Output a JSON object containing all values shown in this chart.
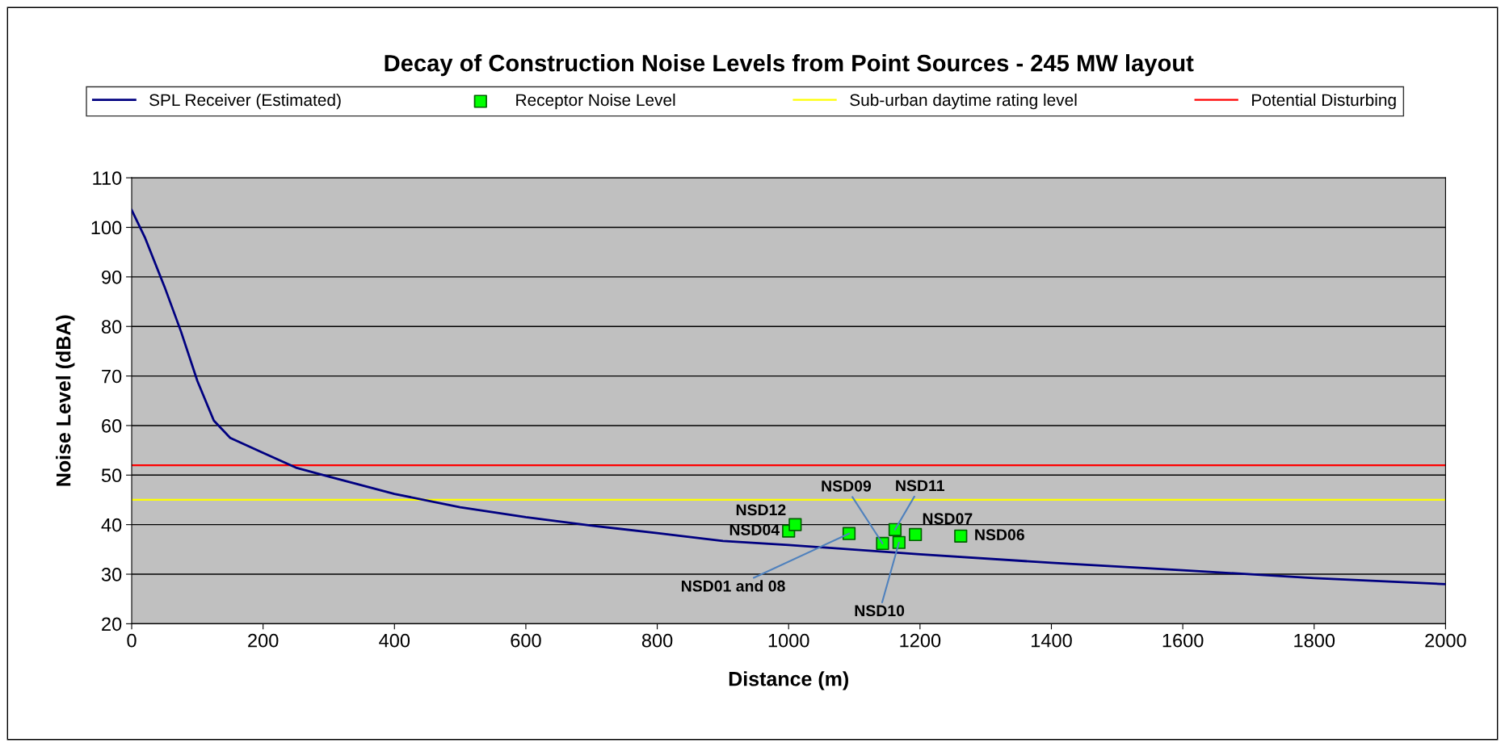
{
  "chart_data": {
    "type": "line",
    "title": "Decay of Construction Noise Levels from Point Sources - 245 MW layout",
    "xlabel": "Distance (m)",
    "ylabel": "Noise Level (dBA)",
    "xlim": [
      0,
      2000
    ],
    "xticks": [
      0,
      200,
      400,
      600,
      800,
      1000,
      1200,
      1400,
      1600,
      1800,
      2000
    ],
    "ylim": [
      20,
      110
    ],
    "yticks": [
      20,
      30,
      40,
      50,
      60,
      70,
      80,
      90,
      100,
      110
    ],
    "grid": "y",
    "legend": "top",
    "series": [
      {
        "name": "SPL Receiver (Estimated)",
        "color": "#000080",
        "x": [
          0,
          20,
          50,
          75,
          100,
          125,
          150,
          200,
          250,
          300,
          400,
          500,
          600,
          700,
          800,
          900,
          1000,
          1200,
          1400,
          1600,
          1800,
          2000
        ],
        "values": [
          103.5,
          98,
          88,
          79,
          69,
          61,
          57.5,
          54.5,
          51.5,
          49.7,
          46.2,
          43.5,
          41.5,
          39.8,
          38.3,
          36.7,
          35.9,
          34,
          32.3,
          30.8,
          29.2,
          28
        ]
      },
      {
        "name": "Receptor Noise Level",
        "type": "scatter",
        "marker": "square",
        "color": "#00ff00",
        "x": [
          1000,
          1010,
          1092,
          1143,
          1162,
          1168,
          1193,
          1262
        ],
        "values": [
          38.7,
          40,
          38.2,
          36.2,
          39,
          36.4,
          38,
          37.7
        ]
      }
    ],
    "ref_lines": [
      {
        "axis": "y",
        "value": 45,
        "label": "Sub-urban daytime rating level",
        "color": "#ffff00"
      },
      {
        "axis": "y",
        "value": 52,
        "label": "Potential Disturbing",
        "color": "#ff0000"
      }
    ],
    "annotations": [
      {
        "text": "NSD04",
        "x": 1000,
        "y": 38.7
      },
      {
        "text": "NSD12",
        "x": 1010,
        "y": 40
      },
      {
        "text": "NSD01 and 08",
        "x": 1092,
        "y": 38.2
      },
      {
        "text": "NSD09",
        "x": 1143,
        "y": 36.2
      },
      {
        "text": "NSD11",
        "x": 1162,
        "y": 39
      },
      {
        "text": "NSD10",
        "x": 1168,
        "y": 36.4
      },
      {
        "text": "NSD07",
        "x": 1193,
        "y": 38
      },
      {
        "text": "NSD06",
        "x": 1262,
        "y": 37.7
      }
    ]
  }
}
